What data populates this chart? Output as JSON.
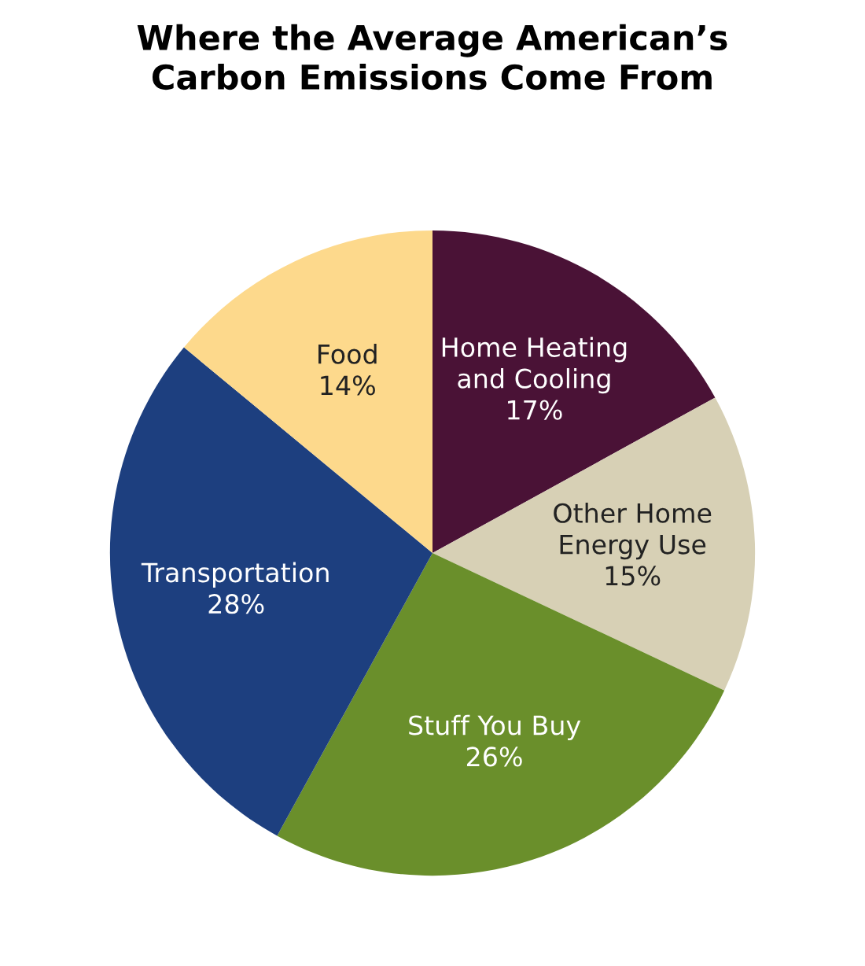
{
  "chart_data": {
    "type": "pie",
    "title": "Where the Average American’s\nCarbon Emissions Come From",
    "categories": [
      "Home Heating\nand Cooling",
      "Other Home\nEnergy Use",
      "Stuff You Buy",
      "Transportation",
      "Food"
    ],
    "values": [
      17,
      15,
      26,
      28,
      14
    ],
    "colors": [
      "#4a1236",
      "#d7d0b5",
      "#6a8f2b",
      "#1d3f7f",
      "#fdd98c"
    ],
    "value_labels": [
      "17%",
      "15%",
      "26%",
      "28%",
      "14%"
    ],
    "legend": false
  }
}
